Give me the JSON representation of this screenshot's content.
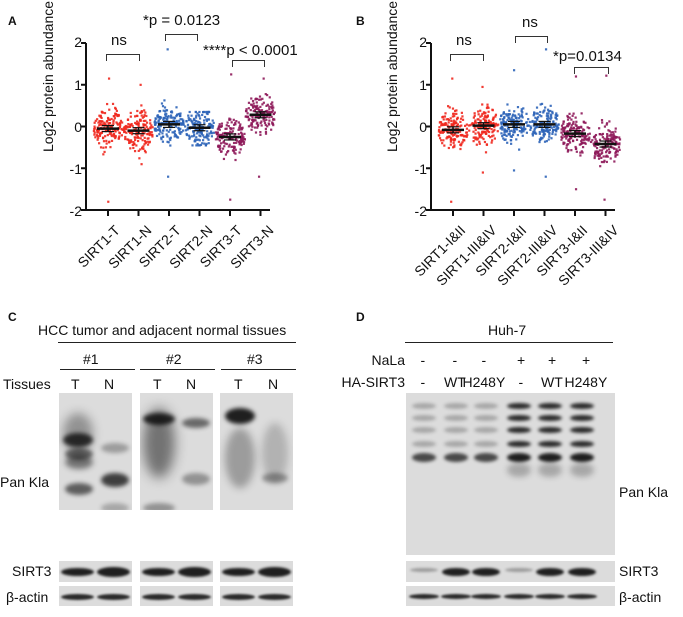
{
  "panels": {
    "A": {
      "letter": "A",
      "ylabel": "Log2 protein abundance",
      "yticks": [
        "2",
        "1",
        "0",
        "-1",
        "-2"
      ],
      "stats": [
        {
          "text": "ns"
        },
        {
          "text": "*p = 0.0123"
        },
        {
          "text": "****p < 0.0001"
        }
      ],
      "xlabels": [
        "SIRT1-T",
        "SIRT1-N",
        "SIRT2-T",
        "SIRT2-N",
        "SIRT3-T",
        "SIRT3-N"
      ]
    },
    "B": {
      "letter": "B",
      "ylabel": "Log2 protein abundance",
      "yticks": [
        "2",
        "1",
        "0",
        "-1",
        "-2"
      ],
      "stats": [
        {
          "text": "ns"
        },
        {
          "text": "ns"
        },
        {
          "text": "*p=0.0134"
        }
      ],
      "xlabels": [
        "SIRT1-I&II",
        "SIRT1-III&IV",
        "SIRT2-I&II",
        "SIRT2-III&IV",
        "SIRT3-I&II",
        "SIRT3-III&IV"
      ]
    },
    "C": {
      "letter": "C",
      "title": "HCC tumor and adjacent normal tissues",
      "groups": [
        "#1",
        "#2",
        "#3"
      ],
      "row_label": "Tissues",
      "lanes": [
        "T",
        "N",
        "T",
        "N",
        "T",
        "N"
      ],
      "blot_labels": [
        "Pan Kla",
        "SIRT3",
        "β-actin"
      ]
    },
    "D": {
      "letter": "D",
      "title": "Huh-7",
      "rows": [
        {
          "label": "NaLa",
          "values": [
            "-",
            "-",
            "-",
            "+",
            "+",
            "+"
          ]
        },
        {
          "label": "HA-SIRT3",
          "values": [
            "-",
            "WT",
            "H248Y",
            "-",
            "WT",
            "H248Y"
          ]
        }
      ],
      "blot_labels": [
        "Pan Kla",
        "SIRT3",
        "β-actin"
      ]
    }
  },
  "colors": {
    "sirt1": "#f0281e",
    "sirt2": "#2e64b8",
    "sirt3": "#8e1a5a",
    "axis": "#111111",
    "blot_bg": "#dcdcdc"
  },
  "chart_data": [
    {
      "type": "scatter",
      "title": "",
      "ylabel": "Log2 protein abundance",
      "xlabel": "",
      "ylim": [
        -2,
        2
      ],
      "categories": [
        "SIRT1-T",
        "SIRT1-N",
        "SIRT2-T",
        "SIRT2-N",
        "SIRT3-T",
        "SIRT3-N"
      ],
      "series": [
        {
          "name": "SIRT1-T",
          "mean": -0.05,
          "min": -1.8,
          "max": 1.15,
          "color": "#f0281e"
        },
        {
          "name": "SIRT1-N",
          "mean": -0.1,
          "min": -0.9,
          "max": 1.0,
          "color": "#f0281e"
        },
        {
          "name": "SIRT2-T",
          "mean": 0.05,
          "min": -1.2,
          "max": 1.85,
          "color": "#2e64b8"
        },
        {
          "name": "SIRT2-N",
          "mean": -0.03,
          "min": -0.45,
          "max": 0.35,
          "color": "#2e64b8"
        },
        {
          "name": "SIRT3-T",
          "mean": -0.25,
          "min": -1.75,
          "max": 1.25,
          "color": "#8e1a5a"
        },
        {
          "name": "SIRT3-N",
          "mean": 0.28,
          "min": -1.2,
          "max": 1.15,
          "color": "#8e1a5a"
        }
      ],
      "annotations": [
        "ns (SIRT1-T vs SIRT1-N)",
        "*p = 0.0123 (SIRT2-T vs SIRT2-N)",
        "****p < 0.0001 (SIRT3-T vs SIRT3-N)"
      ]
    },
    {
      "type": "scatter",
      "title": "",
      "ylabel": "Log2 protein abundance",
      "xlabel": "",
      "ylim": [
        -2,
        2
      ],
      "categories": [
        "SIRT1-I&II",
        "SIRT1-III&IV",
        "SIRT2-I&II",
        "SIRT2-III&IV",
        "SIRT3-I&II",
        "SIRT3-III&IV"
      ],
      "series": [
        {
          "name": "SIRT1-I&II",
          "mean": -0.08,
          "min": -1.8,
          "max": 1.15,
          "color": "#f0281e"
        },
        {
          "name": "SIRT1-III&IV",
          "mean": 0.02,
          "min": -1.1,
          "max": 0.95,
          "color": "#f0281e"
        },
        {
          "name": "SIRT2-I&II",
          "mean": 0.05,
          "min": -1.05,
          "max": 1.35,
          "color": "#2e64b8"
        },
        {
          "name": "SIRT2-III&IV",
          "mean": 0.05,
          "min": -1.2,
          "max": 1.85,
          "color": "#2e64b8"
        },
        {
          "name": "SIRT3-I&II",
          "mean": -0.17,
          "min": -1.5,
          "max": 1.2,
          "color": "#8e1a5a"
        },
        {
          "name": "SIRT3-III&IV",
          "mean": -0.42,
          "min": -1.75,
          "max": 1.22,
          "color": "#8e1a5a"
        }
      ],
      "annotations": [
        "ns (SIRT1-I&II vs SIRT1-III&IV)",
        "ns (SIRT2-I&II vs SIRT2-III&IV)",
        "*p=0.0134 (SIRT3-I&II vs SIRT3-III&IV)"
      ]
    }
  ]
}
